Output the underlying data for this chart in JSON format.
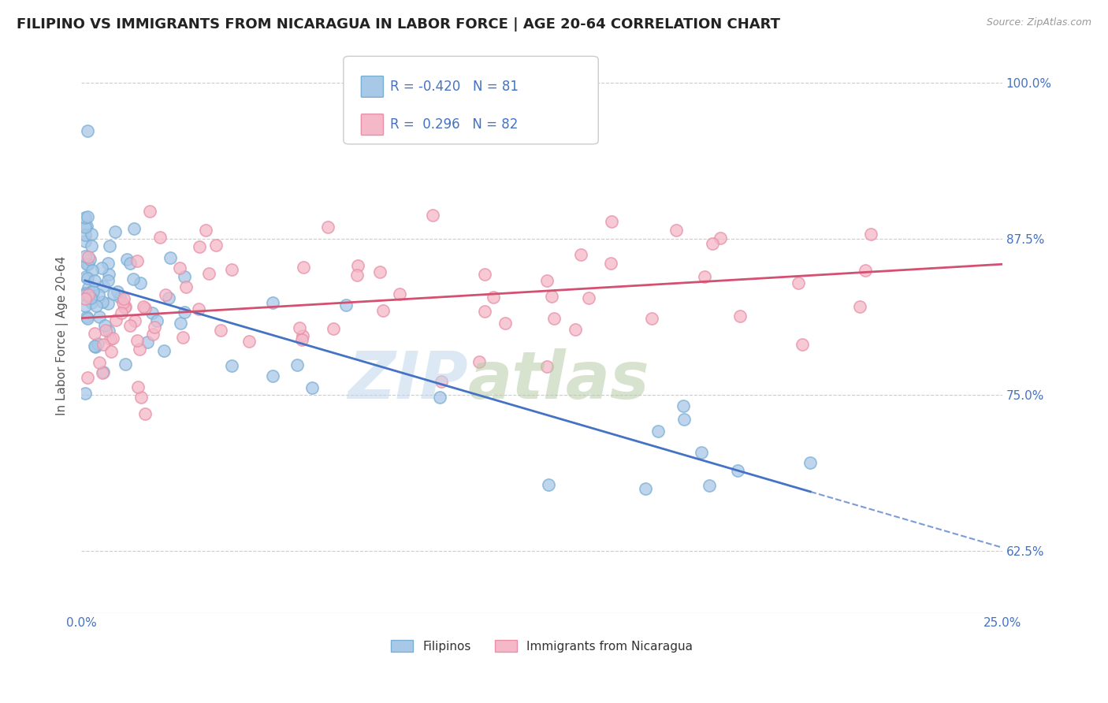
{
  "title": "FILIPINO VS IMMIGRANTS FROM NICARAGUA IN LABOR FORCE | AGE 20-64 CORRELATION CHART",
  "source_text": "Source: ZipAtlas.com",
  "ylabel": "In Labor Force | Age 20-64",
  "xlim": [
    0.0,
    0.25
  ],
  "ylim": [
    0.575,
    1.02
  ],
  "yticks": [
    0.625,
    0.75,
    0.875,
    1.0
  ],
  "yticklabels": [
    "62.5%",
    "75.0%",
    "87.5%",
    "100.0%"
  ],
  "blue_R": -0.42,
  "blue_N": 81,
  "pink_R": 0.296,
  "pink_N": 82,
  "blue_color": "#a8c8e8",
  "pink_color": "#f4b8c8",
  "blue_edge_color": "#7aafd4",
  "pink_edge_color": "#e890a8",
  "blue_line_color": "#4472c4",
  "pink_line_color": "#d45070",
  "legend_label_blue": "Filipinos",
  "legend_label_pink": "Immigrants from Nicaragua",
  "title_fontsize": 13,
  "axis_label_fontsize": 11,
  "tick_fontsize": 11,
  "legend_fontsize": 12
}
